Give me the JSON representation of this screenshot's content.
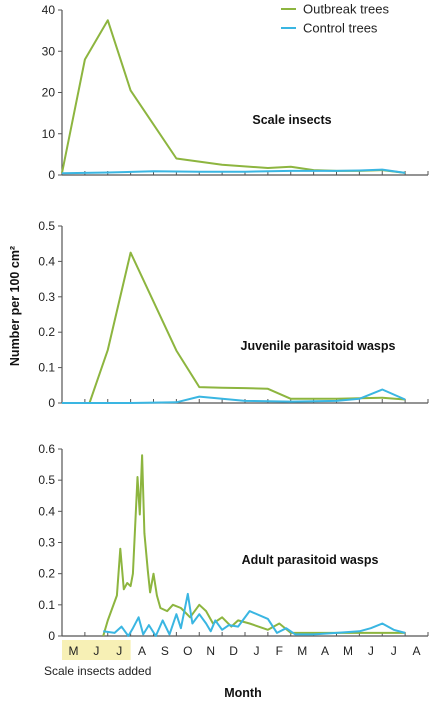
{
  "chart_data": {
    "type": "line",
    "ylabel": "Number per 100 cm²",
    "xlabel": "Month",
    "x_tick_labels": [
      "M",
      "J",
      "J",
      "A",
      "S",
      "O",
      "N",
      "D",
      "J",
      "F",
      "M",
      "A",
      "M",
      "J",
      "J",
      "A"
    ],
    "highlight": {
      "from_month": 0,
      "to_month": 3,
      "label": "Scale insects added",
      "color": "#f7f0b5"
    },
    "legend": {
      "placement": "top-right",
      "entries": [
        {
          "name": "Outbreak trees",
          "color": "#8db53f"
        },
        {
          "name": "Control trees",
          "color": "#3ab6e2"
        }
      ]
    },
    "panels": [
      {
        "title": "Scale insects",
        "ylim": [
          0,
          40
        ],
        "yticks": [
          0,
          10,
          20,
          30,
          40
        ],
        "ytick_labels": [
          "0",
          "10",
          "20",
          "30",
          "40"
        ],
        "series": [
          {
            "name": "Outbreak trees",
            "color": "#8db53f",
            "points": [
              [
                0,
                0.5
              ],
              [
                1,
                28
              ],
              [
                2,
                37.5
              ],
              [
                3,
                20.5
              ],
              [
                5,
                4
              ],
              [
                7,
                2.5
              ],
              [
                9,
                1.7
              ],
              [
                10,
                2
              ],
              [
                11,
                1.2
              ],
              [
                12,
                1
              ],
              [
                13,
                1
              ],
              [
                14,
                1.2
              ],
              [
                15,
                0.5
              ]
            ]
          },
          {
            "name": "Control trees",
            "color": "#3ab6e2",
            "points": [
              [
                0,
                0.4
              ],
              [
                2,
                0.6
              ],
              [
                4,
                0.9
              ],
              [
                6,
                0.8
              ],
              [
                8,
                0.8
              ],
              [
                10,
                1
              ],
              [
                12,
                1
              ],
              [
                13,
                1.1
              ],
              [
                14,
                1.3
              ],
              [
                15,
                0.5
              ]
            ]
          }
        ]
      },
      {
        "title": "Juvenile parasitoid wasps",
        "ylim": [
          0,
          0.5
        ],
        "yticks": [
          0,
          0.1,
          0.2,
          0.3,
          0.4,
          0.5
        ],
        "ytick_labels": [
          "0",
          "0.1",
          "0.2",
          "0.3",
          "0.4",
          "0.5"
        ],
        "series": [
          {
            "name": "Outbreak trees",
            "color": "#8db53f",
            "points": [
              [
                0,
                0
              ],
              [
                1.2,
                0
              ],
              [
                2,
                0.15
              ],
              [
                3,
                0.425
              ],
              [
                5,
                0.148
              ],
              [
                6,
                0.045
              ],
              [
                7,
                0.043
              ],
              [
                8,
                0.042
              ],
              [
                9,
                0.04
              ],
              [
                10,
                0.012
              ],
              [
                11,
                0.012
              ],
              [
                12,
                0.012
              ],
              [
                14,
                0.015
              ],
              [
                15,
                0.01
              ]
            ]
          },
          {
            "name": "Control trees",
            "color": "#3ab6e2",
            "points": [
              [
                0,
                0
              ],
              [
                3,
                0
              ],
              [
                5,
                0.002
              ],
              [
                6,
                0.018
              ],
              [
                7,
                0.012
              ],
              [
                8,
                0.006
              ],
              [
                10,
                0.004
              ],
              [
                12,
                0.006
              ],
              [
                13,
                0.012
              ],
              [
                14,
                0.038
              ],
              [
                15,
                0.01
              ]
            ]
          }
        ]
      },
      {
        "title": "Adult parasitoid wasps",
        "ylim": [
          0,
          0.6
        ],
        "yticks": [
          0,
          0.1,
          0.2,
          0.3,
          0.4,
          0.5,
          0.6
        ],
        "ytick_labels": [
          "0",
          "0.1",
          "0.2",
          "0.3",
          "0.4",
          "0.5",
          "0.6"
        ],
        "series": [
          {
            "name": "Outbreak trees",
            "color": "#8db53f",
            "points": [
              [
                1.8,
                0
              ],
              [
                2,
                0.05
              ],
              [
                2.4,
                0.13
              ],
              [
                2.55,
                0.28
              ],
              [
                2.7,
                0.15
              ],
              [
                2.85,
                0.17
              ],
              [
                3,
                0.16
              ],
              [
                3.1,
                0.2
              ],
              [
                3.3,
                0.51
              ],
              [
                3.4,
                0.39
              ],
              [
                3.5,
                0.58
              ],
              [
                3.6,
                0.33
              ],
              [
                3.75,
                0.21
              ],
              [
                3.85,
                0.14
              ],
              [
                4.0,
                0.2
              ],
              [
                4.15,
                0.13
              ],
              [
                4.3,
                0.09
              ],
              [
                4.6,
                0.08
              ],
              [
                4.85,
                0.1
              ],
              [
                5.2,
                0.09
              ],
              [
                5.6,
                0.06
              ],
              [
                6.0,
                0.1
              ],
              [
                6.3,
                0.08
              ],
              [
                6.6,
                0.04
              ],
              [
                7.0,
                0.06
              ],
              [
                7.4,
                0.03
              ],
              [
                7.7,
                0.05
              ],
              [
                8.2,
                0.04
              ],
              [
                9.0,
                0.02
              ],
              [
                9.5,
                0.04
              ],
              [
                10,
                0.01
              ],
              [
                11,
                0.01
              ],
              [
                12,
                0.01
              ],
              [
                13,
                0.01
              ],
              [
                14,
                0.01
              ],
              [
                15,
                0.01
              ]
            ]
          },
          {
            "name": "Control trees",
            "color": "#3ab6e2",
            "points": [
              [
                1.8,
                0.015
              ],
              [
                2.3,
                0.01
              ],
              [
                2.6,
                0.03
              ],
              [
                2.9,
                0
              ],
              [
                3.1,
                0.025
              ],
              [
                3.35,
                0.06
              ],
              [
                3.55,
                0.005
              ],
              [
                3.8,
                0.035
              ],
              [
                4.1,
                0
              ],
              [
                4.4,
                0.05
              ],
              [
                4.7,
                0.005
              ],
              [
                5.0,
                0.07
              ],
              [
                5.2,
                0.025
              ],
              [
                5.5,
                0.135
              ],
              [
                5.7,
                0.04
              ],
              [
                6.0,
                0.07
              ],
              [
                6.3,
                0.04
              ],
              [
                6.5,
                0.015
              ],
              [
                6.7,
                0.05
              ],
              [
                7.0,
                0.02
              ],
              [
                7.3,
                0.035
              ],
              [
                7.7,
                0.03
              ],
              [
                8.2,
                0.08
              ],
              [
                9,
                0.055
              ],
              [
                9.4,
                0.01
              ],
              [
                9.8,
                0.025
              ],
              [
                10.2,
                0.005
              ],
              [
                11,
                0.005
              ],
              [
                12,
                0.01
              ],
              [
                13,
                0.015
              ],
              [
                13.5,
                0.025
              ],
              [
                14,
                0.04
              ],
              [
                14.5,
                0.02
              ],
              [
                15,
                0.01
              ]
            ]
          }
        ]
      }
    ]
  }
}
